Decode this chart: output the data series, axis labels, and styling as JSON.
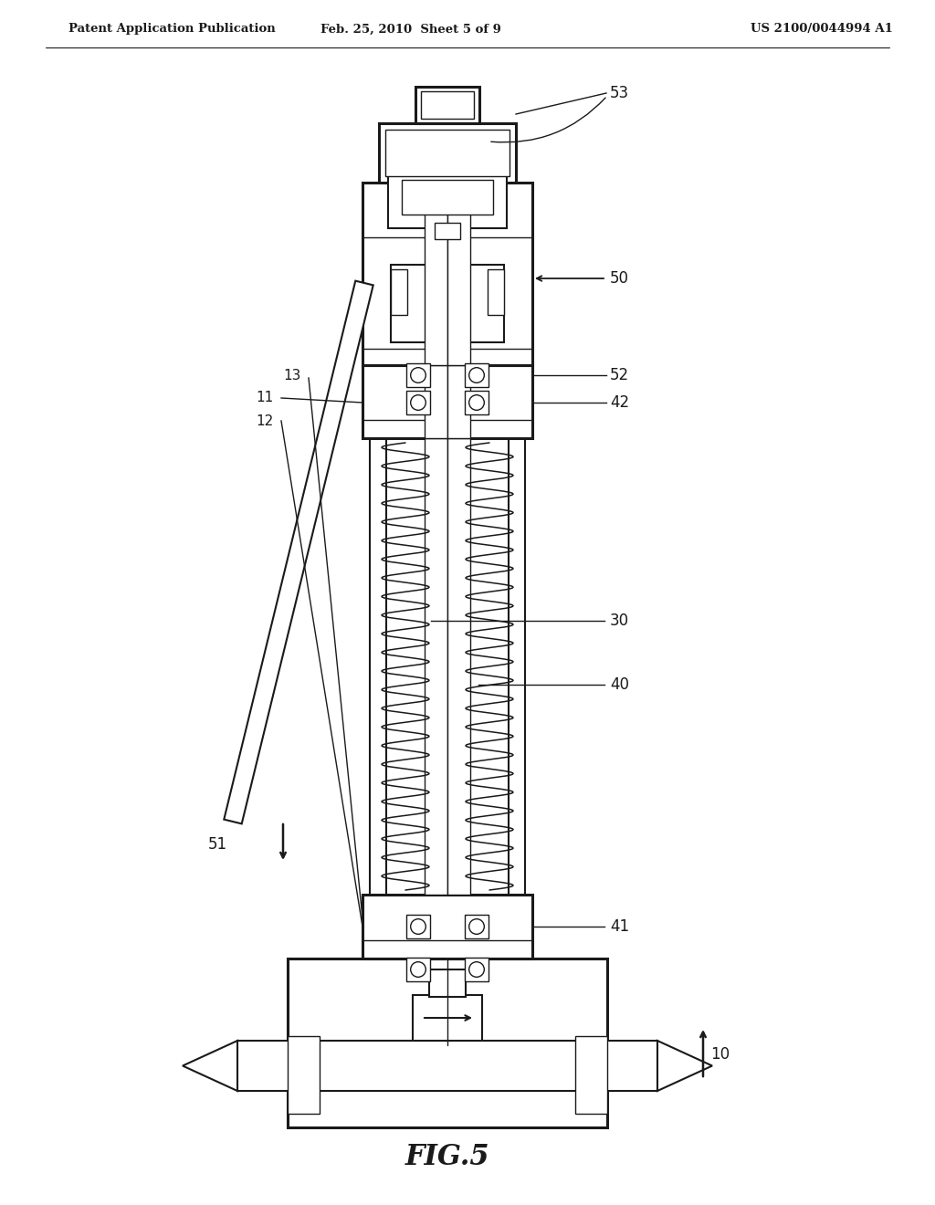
{
  "bg_color": "#ffffff",
  "line_color": "#1a1a1a",
  "header_left": "Patent Application Publication",
  "header_mid": "Feb. 25, 2010  Sheet 5 of 9",
  "header_right": "US 2100/0044994 A1",
  "figure_label": "FIG.5"
}
